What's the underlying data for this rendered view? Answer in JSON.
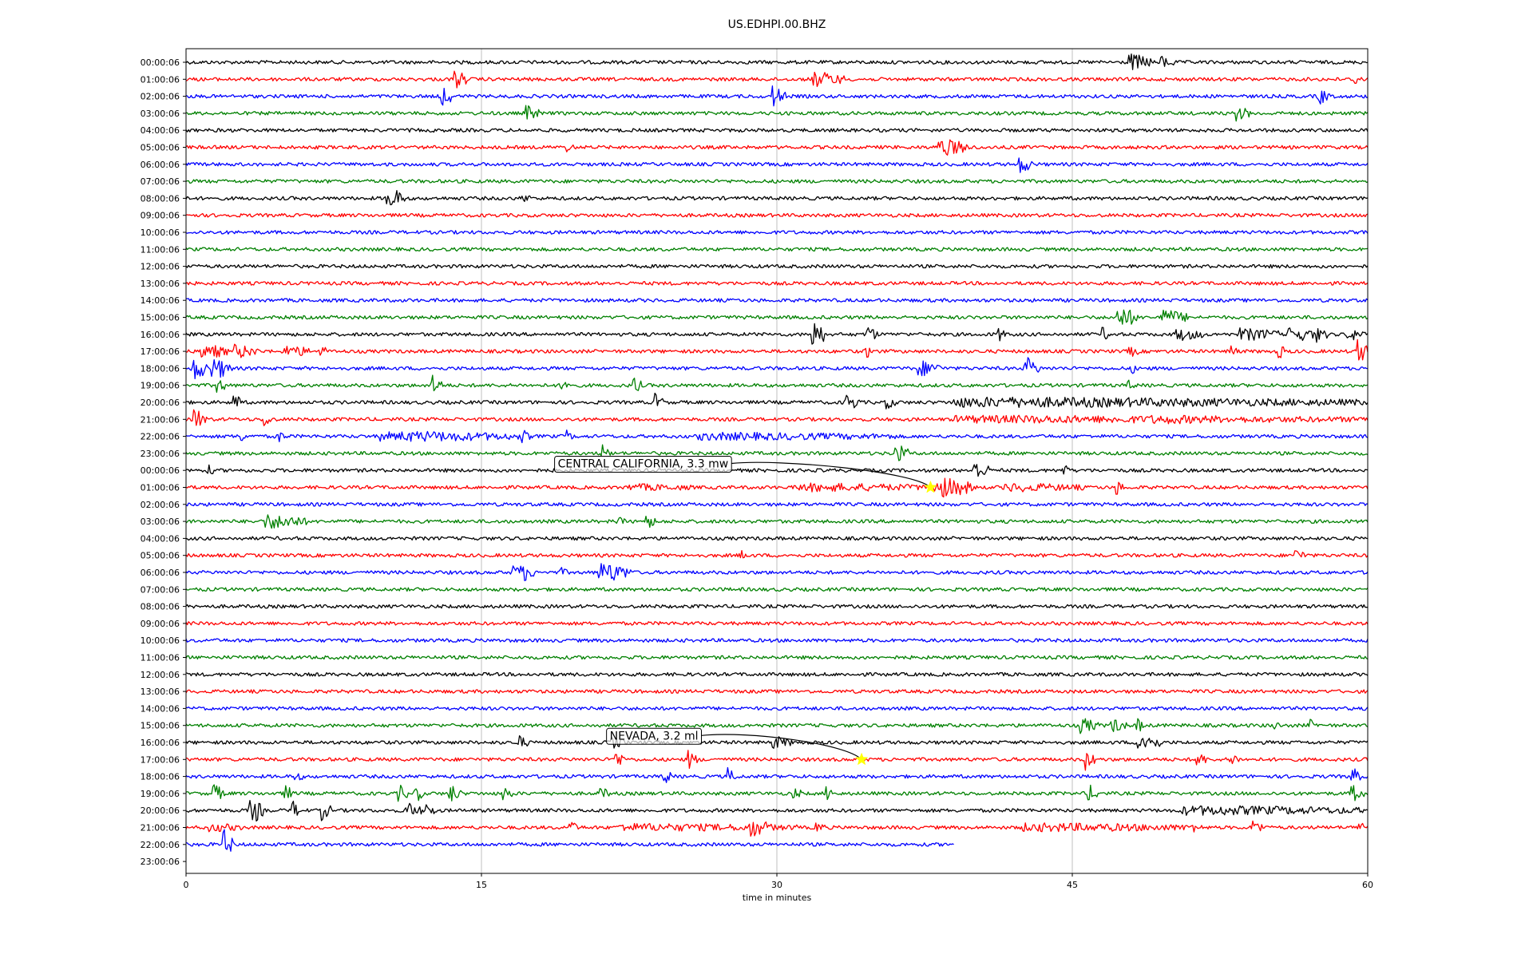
{
  "chart_data": {
    "type": "line",
    "title": "US.EDHPI.00.BHZ",
    "xlabel": "time in minutes",
    "ylabel": "",
    "xlim": [
      0,
      60
    ],
    "x_ticks": [
      "0",
      "15",
      "30",
      "45",
      "60"
    ],
    "x_tick_values": [
      0,
      15,
      30,
      45,
      60
    ],
    "grid": "vertical lines at major x ticks",
    "row_labels": [
      "00:00:06",
      "01:00:06",
      "02:00:06",
      "03:00:06",
      "04:00:06",
      "05:00:06",
      "06:00:06",
      "07:00:06",
      "08:00:06",
      "09:00:06",
      "10:00:06",
      "11:00:06",
      "12:00:06",
      "13:00:06",
      "14:00:06",
      "15:00:06",
      "16:00:06",
      "17:00:06",
      "18:00:06",
      "19:00:06",
      "20:00:06",
      "21:00:06",
      "22:00:06",
      "23:00:06",
      "00:00:06",
      "01:00:06",
      "02:00:06",
      "03:00:06",
      "04:00:06",
      "05:00:06",
      "06:00:06",
      "07:00:06",
      "08:00:06",
      "09:00:06",
      "10:00:06",
      "11:00:06",
      "12:00:06",
      "13:00:06",
      "14:00:06",
      "15:00:06",
      "16:00:06",
      "17:00:06",
      "18:00:06",
      "19:00:06",
      "20:00:06",
      "21:00:06",
      "22:00:06",
      "23:00:06"
    ],
    "trace_colors": [
      "#000000",
      "#ff0000",
      "#0000ff",
      "#008000"
    ],
    "data_end": {
      "row": 46,
      "minute": 39
    },
    "last_row_has_trace": false,
    "events": [
      {
        "label": "CENTRAL CALIFORNIA, 3.3 mw",
        "row": 25,
        "minute": 37.8,
        "marker_color": "#ffff00"
      },
      {
        "label": "NEVADA, 3.2 ml",
        "row": 41,
        "minute": 34.3,
        "marker_color": "#ffff00"
      }
    ],
    "bursts": [
      [
        0,
        47.8,
        1.2,
        0.9
      ],
      [
        0,
        49.5,
        0.6,
        0.6
      ],
      [
        1,
        13.6,
        0.5,
        1.2
      ],
      [
        1,
        31.8,
        1.5,
        0.8
      ],
      [
        1,
        59.3,
        0.3,
        0.6
      ],
      [
        2,
        13.0,
        0.3,
        1.4
      ],
      [
        2,
        29.8,
        0.5,
        1.2
      ],
      [
        2,
        57.5,
        0.5,
        0.8
      ],
      [
        3,
        17.3,
        0.5,
        0.8
      ],
      [
        3,
        53.3,
        0.6,
        0.8
      ],
      [
        5,
        19.3,
        0.3,
        0.4
      ],
      [
        5,
        38.2,
        1.6,
        0.9
      ],
      [
        6,
        42.3,
        0.6,
        0.9
      ],
      [
        8,
        10.2,
        0.8,
        1.2
      ],
      [
        8,
        17.1,
        0.2,
        0.5
      ],
      [
        15,
        47.3,
        1.0,
        1.1
      ],
      [
        15,
        49.5,
        1.3,
        0.8
      ],
      [
        16,
        31.8,
        0.5,
        1.9
      ],
      [
        16,
        34.6,
        0.4,
        1.0
      ],
      [
        16,
        41.2,
        0.3,
        0.8
      ],
      [
        16,
        46.5,
        0.3,
        0.7
      ],
      [
        16,
        50.3,
        1.2,
        0.6
      ],
      [
        16,
        53.5,
        2.0,
        0.6
      ],
      [
        16,
        56.0,
        1.5,
        0.7
      ],
      [
        16,
        57.4,
        0.4,
        0.8
      ],
      [
        16,
        59.0,
        1.0,
        0.5
      ],
      [
        17,
        0.8,
        1.2,
        0.8
      ],
      [
        17,
        2.5,
        1.0,
        0.7
      ],
      [
        17,
        5.0,
        1.2,
        0.6
      ],
      [
        17,
        6.8,
        0.2,
        0.8
      ],
      [
        17,
        34.5,
        0.3,
        0.7
      ],
      [
        17,
        47.9,
        0.3,
        0.6
      ],
      [
        17,
        53.0,
        0.3,
        0.8
      ],
      [
        17,
        55.5,
        0.3,
        0.7
      ],
      [
        17,
        59.5,
        0.3,
        1.7
      ],
      [
        18,
        0.3,
        0.8,
        1.2
      ],
      [
        18,
        1.2,
        1.0,
        1.0
      ],
      [
        18,
        1.7,
        0.4,
        1.0
      ],
      [
        18,
        37.2,
        1.0,
        0.8
      ],
      [
        18,
        42.6,
        0.6,
        1.2
      ],
      [
        18,
        48.0,
        0.2,
        0.5
      ],
      [
        19,
        1.6,
        0.3,
        0.9
      ],
      [
        19,
        12.5,
        0.4,
        1.1
      ],
      [
        19,
        19.1,
        0.3,
        0.8
      ],
      [
        19,
        22.7,
        0.3,
        1.0
      ],
      [
        19,
        47.8,
        0.3,
        0.5
      ],
      [
        20,
        2.4,
        0.3,
        1.2
      ],
      [
        20,
        23.8,
        0.3,
        1.0
      ],
      [
        20,
        33.5,
        0.6,
        0.9
      ],
      [
        20,
        35.5,
        0.5,
        0.6
      ],
      [
        20,
        39.0,
        21.0,
        0.45
      ],
      [
        21,
        0.4,
        0.5,
        1.1
      ],
      [
        21,
        4.0,
        0.3,
        0.9
      ],
      [
        21,
        39.0,
        21.0,
        0.3
      ],
      [
        21,
        49.0,
        5.0,
        0.35
      ],
      [
        22,
        2.6,
        0.4,
        0.6
      ],
      [
        22,
        4.7,
        0.2,
        0.8
      ],
      [
        22,
        9.8,
        1.5,
        0.4
      ],
      [
        22,
        11.0,
        6.0,
        0.45
      ],
      [
        22,
        17.0,
        0.3,
        0.8
      ],
      [
        22,
        19.2,
        0.3,
        0.8
      ],
      [
        22,
        26.0,
        10.0,
        0.3
      ],
      [
        23,
        21.1,
        0.3,
        0.9
      ],
      [
        23,
        36.0,
        0.5,
        1.1
      ],
      [
        24,
        1.1,
        0.2,
        0.6
      ],
      [
        24,
        40.0,
        0.6,
        1.1
      ],
      [
        24,
        44.5,
        0.3,
        0.6
      ],
      [
        25,
        22.5,
        3.0,
        0.25
      ],
      [
        25,
        31.0,
        6.5,
        0.35
      ],
      [
        25,
        38.0,
        2.0,
        1.1
      ],
      [
        25,
        41.5,
        4.0,
        0.35
      ],
      [
        25,
        47.2,
        0.3,
        0.8
      ],
      [
        27,
        4.0,
        1.5,
        0.8
      ],
      [
        27,
        5.2,
        0.8,
        0.6
      ],
      [
        27,
        21.8,
        0.3,
        0.6
      ],
      [
        27,
        23.4,
        0.3,
        0.8
      ],
      [
        29,
        28.2,
        0.2,
        0.5
      ],
      [
        29,
        56.3,
        0.5,
        0.6
      ],
      [
        30,
        16.6,
        1.0,
        0.8
      ],
      [
        30,
        17.2,
        0.4,
        0.9
      ],
      [
        30,
        21.0,
        1.5,
        1.1
      ],
      [
        30,
        19.0,
        0.2,
        0.5
      ],
      [
        39,
        45.4,
        0.8,
        0.8
      ],
      [
        39,
        47.0,
        0.6,
        0.7
      ],
      [
        39,
        48.3,
        0.3,
        0.7
      ],
      [
        39,
        55.2,
        0.2,
        0.6
      ],
      [
        39,
        57.0,
        0.3,
        0.6
      ],
      [
        40,
        16.9,
        0.3,
        0.8
      ],
      [
        40,
        21.6,
        0.6,
        0.6
      ],
      [
        40,
        29.8,
        0.8,
        0.6
      ],
      [
        40,
        48.3,
        1.0,
        1.2
      ],
      [
        41,
        21.8,
        0.3,
        1.1
      ],
      [
        41,
        25.5,
        0.3,
        1.0
      ],
      [
        41,
        45.7,
        0.3,
        1.2
      ],
      [
        41,
        51.3,
        0.4,
        0.9
      ],
      [
        41,
        53.0,
        0.3,
        0.8
      ],
      [
        42,
        5.5,
        0.3,
        0.5
      ],
      [
        42,
        24.3,
        0.2,
        1.0
      ],
      [
        42,
        27.5,
        0.3,
        0.9
      ],
      [
        42,
        59.2,
        0.3,
        1.0
      ],
      [
        43,
        1.4,
        0.4,
        1.0
      ],
      [
        43,
        5.0,
        0.4,
        0.8
      ],
      [
        43,
        10.8,
        0.3,
        0.9
      ],
      [
        43,
        11.6,
        0.3,
        1.1
      ],
      [
        43,
        13.4,
        0.4,
        1.0
      ],
      [
        43,
        16.1,
        0.3,
        0.8
      ],
      [
        43,
        21.0,
        0.4,
        0.6
      ],
      [
        43,
        30.8,
        0.3,
        0.6
      ],
      [
        43,
        32.5,
        0.3,
        0.8
      ],
      [
        43,
        45.8,
        0.3,
        1.0
      ],
      [
        43,
        59.2,
        0.5,
        0.9
      ],
      [
        44,
        3.2,
        0.4,
        1.2
      ],
      [
        44,
        3.5,
        0.3,
        1.4
      ],
      [
        44,
        5.4,
        0.3,
        1.0
      ],
      [
        44,
        6.9,
        0.3,
        1.1
      ],
      [
        44,
        11.2,
        0.6,
        0.8
      ],
      [
        44,
        12.2,
        0.3,
        1.0
      ],
      [
        44,
        50.5,
        9.5,
        0.4
      ],
      [
        45,
        1.2,
        1.5,
        0.35
      ],
      [
        45,
        19.5,
        0.3,
        0.6
      ],
      [
        45,
        22.0,
        9.0,
        0.3
      ],
      [
        45,
        28.6,
        1.0,
        1.0
      ],
      [
        45,
        32.0,
        0.3,
        0.6
      ],
      [
        45,
        42.5,
        9.0,
        0.35
      ],
      [
        45,
        51.0,
        0.2,
        0.8
      ],
      [
        45,
        54.2,
        0.3,
        1.2
      ],
      [
        45,
        59.5,
        0.3,
        1.3
      ],
      [
        46,
        1.9,
        0.4,
        1.7
      ]
    ]
  }
}
